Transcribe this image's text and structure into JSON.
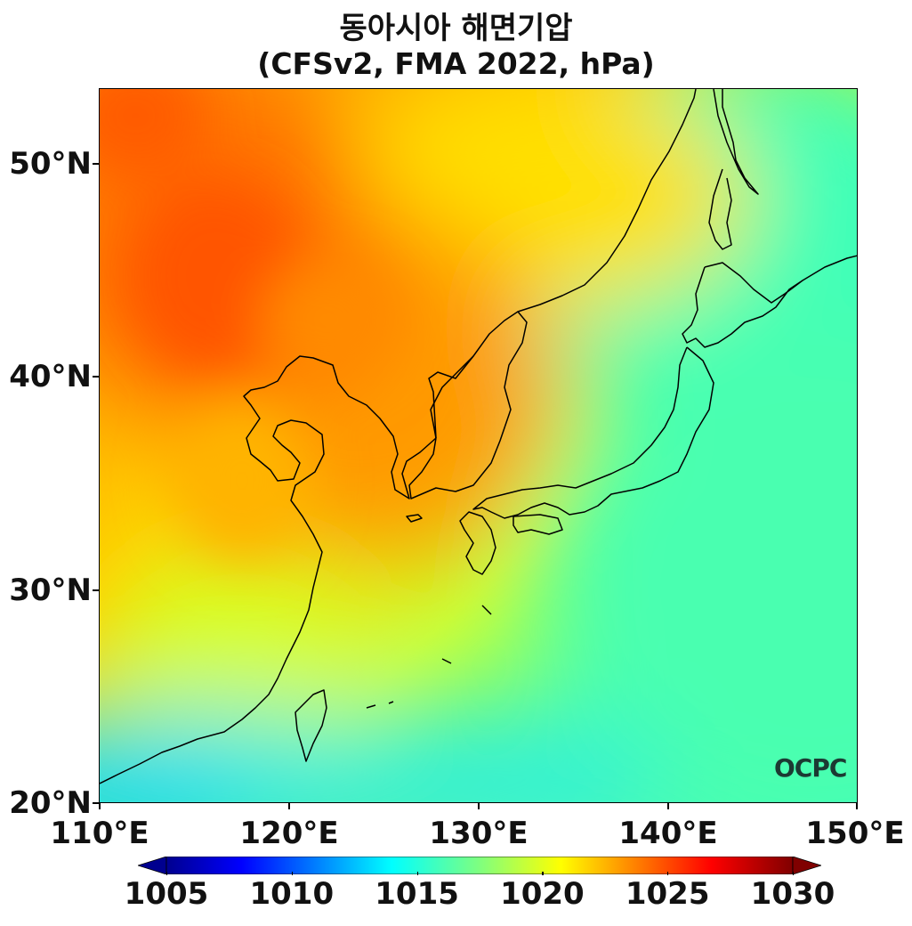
{
  "title": {
    "line1": "동아시아 해면기압",
    "line2": "(CFSv2, FMA 2022, hPa)"
  },
  "map": {
    "lon_range": [
      110,
      150
    ],
    "lat_range": [
      20,
      53.5
    ],
    "lat_ticks": [
      "20°N",
      "30°N",
      "40°N",
      "50°N"
    ],
    "lon_ticks": [
      "110°E",
      "120°E",
      "130°E",
      "140°E",
      "150°E"
    ],
    "colormap": "jet",
    "field": "sea level pressure",
    "pressure_pattern": [
      {
        "region": "Mongolia / northern China high",
        "value": 1025
      },
      {
        "region": "northwest corner",
        "value": 1024
      },
      {
        "region": "northeast China",
        "value": 1022
      },
      {
        "region": "Korea / Yellow Sea",
        "value": 1021
      },
      {
        "region": "southern China coast",
        "value": 1018
      },
      {
        "region": "Japan",
        "value": 1019
      },
      {
        "region": "northwest Pacific east",
        "value": 1016
      },
      {
        "region": "South China Sea",
        "value": 1013
      }
    ],
    "coastline_color": "#000000"
  },
  "colorbar": {
    "labels": [
      "1005",
      "1010",
      "1015",
      "1020",
      "1025",
      "1030"
    ],
    "min": 1005,
    "max": 1030,
    "extend": "both"
  },
  "logo": {
    "text": "OCPC"
  }
}
